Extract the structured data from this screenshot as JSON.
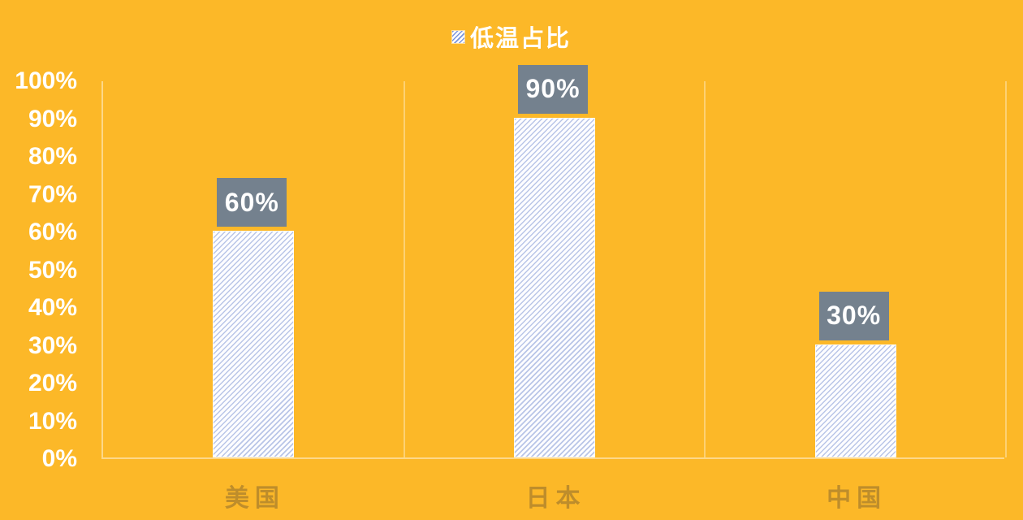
{
  "legend": {
    "label": "低温占比"
  },
  "chart_data": {
    "type": "bar",
    "title": "",
    "categories": [
      "美国",
      "日本",
      "中国"
    ],
    "series": [
      {
        "name": "低温占比",
        "values": [
          60,
          90,
          30
        ],
        "data_labels": [
          "60%",
          "90%",
          "30%"
        ]
      }
    ],
    "xlabel": "",
    "ylabel": "",
    "ylim": [
      0,
      100
    ],
    "y_tick_step": 10,
    "y_tick_labels": [
      "0%",
      "10%",
      "20%",
      "30%",
      "40%",
      "50%",
      "60%",
      "70%",
      "80%",
      "90%",
      "100%"
    ],
    "grid": "vertical category separators only",
    "legend_position": "top-center",
    "bar_style": "diagonal hatch (light blue on white)"
  },
  "colors": {
    "background": "#FCB828",
    "bar_stripe": "#B9C5E7",
    "bar_base": "#FDFDFF",
    "value_box": "#74818E",
    "value_text": "#FFFFFF",
    "axis_text": "#FFFFFF",
    "category_text": "#BE8D2B",
    "gridline": "rgba(255,255,255,0.35)",
    "axis_line": "rgba(255,255,255,0.45)"
  }
}
